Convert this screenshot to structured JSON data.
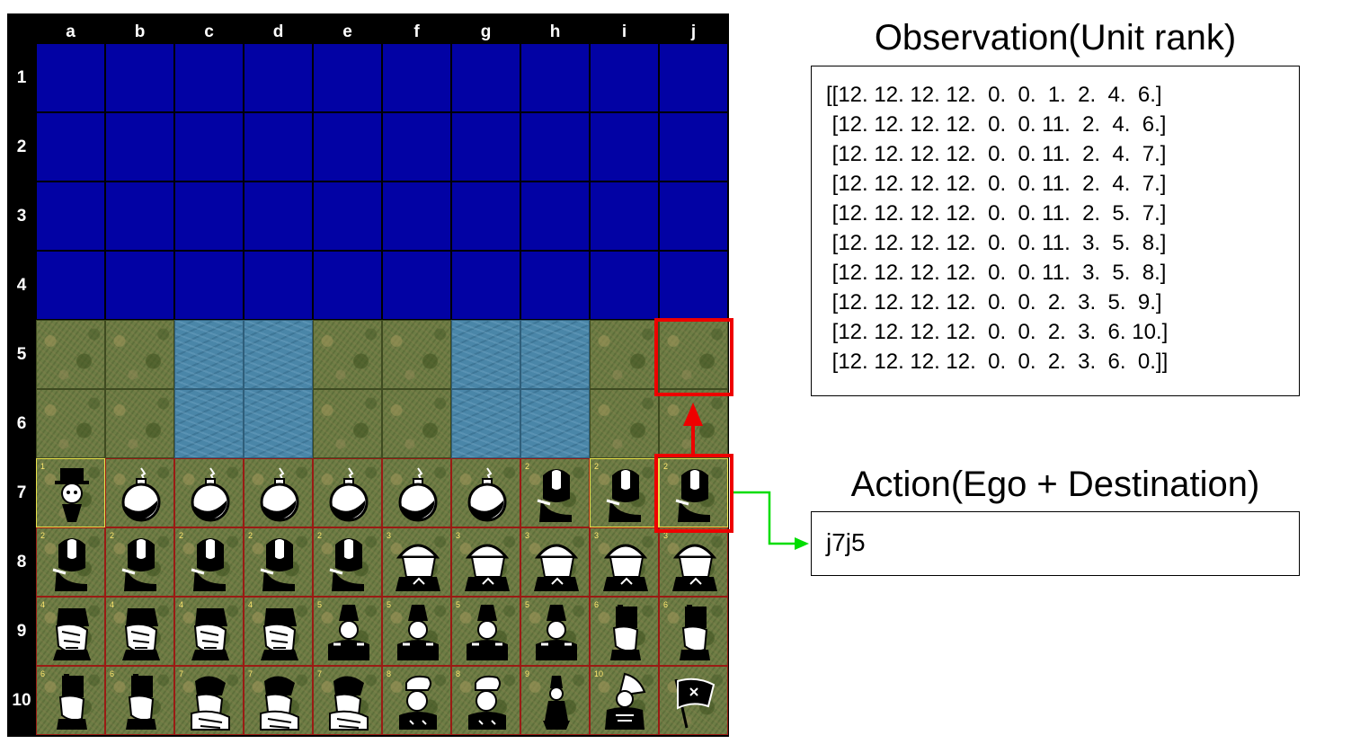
{
  "board": {
    "columns": [
      "a",
      "b",
      "c",
      "d",
      "e",
      "f",
      "g",
      "h",
      "i",
      "j"
    ],
    "rows": [
      "1",
      "2",
      "3",
      "4",
      "5",
      "6",
      "7",
      "8",
      "9",
      "10"
    ],
    "terrain": [
      [
        "enemy",
        "enemy",
        "enemy",
        "enemy",
        "enemy",
        "enemy",
        "enemy",
        "enemy",
        "enemy",
        "enemy"
      ],
      [
        "enemy",
        "enemy",
        "enemy",
        "enemy",
        "enemy",
        "enemy",
        "enemy",
        "enemy",
        "enemy",
        "enemy"
      ],
      [
        "enemy",
        "enemy",
        "enemy",
        "enemy",
        "enemy",
        "enemy",
        "enemy",
        "enemy",
        "enemy",
        "enemy"
      ],
      [
        "enemy",
        "enemy",
        "enemy",
        "enemy",
        "enemy",
        "enemy",
        "enemy",
        "enemy",
        "enemy",
        "enemy"
      ],
      [
        "grass",
        "grass",
        "water",
        "water",
        "grass",
        "grass",
        "water",
        "water",
        "grass",
        "grass"
      ],
      [
        "grass",
        "grass",
        "water",
        "water",
        "grass",
        "grass",
        "water",
        "water",
        "grass",
        "grass"
      ],
      [
        "grass",
        "grass",
        "grass",
        "grass",
        "grass",
        "grass",
        "grass",
        "grass",
        "grass",
        "grass"
      ],
      [
        "grass",
        "grass",
        "grass",
        "grass",
        "grass",
        "grass",
        "grass",
        "grass",
        "grass",
        "grass"
      ],
      [
        "grass",
        "grass",
        "grass",
        "grass",
        "grass",
        "grass",
        "grass",
        "grass",
        "grass",
        "grass"
      ],
      [
        "grass",
        "grass",
        "grass",
        "grass",
        "grass",
        "grass",
        "grass",
        "grass",
        "grass",
        "grass"
      ]
    ],
    "pieces": [
      [],
      [],
      [],
      [],
      [],
      [],
      [
        {
          "rank": "1",
          "icon": "spy-piece-icon",
          "sel": true
        },
        {
          "rank": "",
          "icon": "bomb-piece-icon"
        },
        {
          "rank": "",
          "icon": "bomb-piece-icon"
        },
        {
          "rank": "",
          "icon": "bomb-piece-icon"
        },
        {
          "rank": "",
          "icon": "bomb-piece-icon"
        },
        {
          "rank": "",
          "icon": "bomb-piece-icon"
        },
        {
          "rank": "",
          "icon": "bomb-piece-icon"
        },
        {
          "rank": "2",
          "icon": "scout-piece-icon"
        },
        {
          "rank": "2",
          "icon": "scout-piece-icon",
          "sel": true
        },
        {
          "rank": "2",
          "icon": "scout-piece-icon",
          "sel": true
        }
      ],
      [
        {
          "rank": "2",
          "icon": "scout-piece-icon"
        },
        {
          "rank": "2",
          "icon": "scout-piece-icon"
        },
        {
          "rank": "2",
          "icon": "scout-piece-icon"
        },
        {
          "rank": "2",
          "icon": "scout-piece-icon"
        },
        {
          "rank": "2",
          "icon": "scout-piece-icon"
        },
        {
          "rank": "3",
          "icon": "miner-piece-icon"
        },
        {
          "rank": "3",
          "icon": "miner-piece-icon"
        },
        {
          "rank": "3",
          "icon": "miner-piece-icon"
        },
        {
          "rank": "3",
          "icon": "miner-piece-icon"
        },
        {
          "rank": "3",
          "icon": "miner-piece-icon"
        }
      ],
      [
        {
          "rank": "4",
          "icon": "sergeant-piece-icon"
        },
        {
          "rank": "4",
          "icon": "sergeant-piece-icon"
        },
        {
          "rank": "4",
          "icon": "sergeant-piece-icon"
        },
        {
          "rank": "4",
          "icon": "sergeant-piece-icon"
        },
        {
          "rank": "5",
          "icon": "lieutenant-piece-icon"
        },
        {
          "rank": "5",
          "icon": "lieutenant-piece-icon"
        },
        {
          "rank": "5",
          "icon": "lieutenant-piece-icon"
        },
        {
          "rank": "5",
          "icon": "lieutenant-piece-icon"
        },
        {
          "rank": "6",
          "icon": "captain-piece-icon"
        },
        {
          "rank": "6",
          "icon": "captain-piece-icon"
        }
      ],
      [
        {
          "rank": "6",
          "icon": "captain-piece-icon"
        },
        {
          "rank": "6",
          "icon": "captain-piece-icon"
        },
        {
          "rank": "7",
          "icon": "major-piece-icon"
        },
        {
          "rank": "7",
          "icon": "major-piece-icon"
        },
        {
          "rank": "7",
          "icon": "major-piece-icon"
        },
        {
          "rank": "8",
          "icon": "colonel-piece-icon"
        },
        {
          "rank": "8",
          "icon": "colonel-piece-icon"
        },
        {
          "rank": "9",
          "icon": "general-piece-icon"
        },
        {
          "rank": "10",
          "icon": "marshal-piece-icon"
        },
        {
          "rank": "",
          "icon": "flag-piece-icon"
        }
      ]
    ]
  },
  "move": {
    "from_square": "j7",
    "to_square": "j5",
    "highlight_color": "#ee0000",
    "link_color": "#00dd00"
  },
  "observation": {
    "title": "Observation(Unit rank)",
    "lines": [
      "[[12. 12. 12. 12.  0.  0.  1.  2.  4.  6.]",
      " [12. 12. 12. 12.  0.  0. 11.  2.  4.  6.]",
      " [12. 12. 12. 12.  0.  0. 11.  2.  4.  7.]",
      " [12. 12. 12. 12.  0.  0. 11.  2.  4.  7.]",
      " [12. 12. 12. 12.  0.  0. 11.  2.  5.  7.]",
      " [12. 12. 12. 12.  0.  0. 11.  3.  5.  8.]",
      " [12. 12. 12. 12.  0.  0. 11.  3.  5.  8.]",
      " [12. 12. 12. 12.  0.  0.  2.  3.  5.  9.]",
      " [12. 12. 12. 12.  0.  0.  2.  3.  6. 10.]",
      " [12. 12. 12. 12.  0.  0.  2.  3.  6.  0.]]"
    ]
  },
  "action": {
    "title": "Action(Ego + Destination)",
    "value": "j7j5"
  }
}
